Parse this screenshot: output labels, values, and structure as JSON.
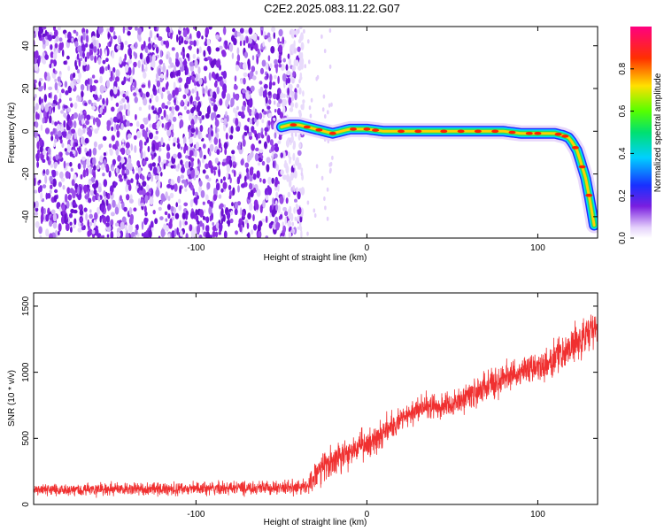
{
  "title": "C2E2.2025.083.11.22.G07",
  "chart_data": [
    {
      "type": "heatmap",
      "xlabel": "Height of straight line (km)",
      "ylabel": "Frequency (Hz)",
      "xlim": [
        -195,
        135
      ],
      "ylim": [
        -50,
        49
      ],
      "x_ticks": [
        -100,
        0,
        100
      ],
      "y_ticks": [
        -40,
        -20,
        0,
        20,
        40
      ],
      "colorbar": {
        "label": "Normalized spectral amplitude",
        "range": [
          0,
          1
        ],
        "ticks": [
          0,
          0.2,
          0.4,
          0.6,
          0.8
        ],
        "colormap": [
          "#ffffff",
          "#c8a8f0",
          "#7a1fe0",
          "#2030ff",
          "#00d8ff",
          "#00e060",
          "#ccff00",
          "#ffcc00",
          "#ff2000",
          "#ff0080"
        ]
      },
      "noise_region_x": [
        -195,
        -45
      ],
      "ridge": {
        "x": [
          -50,
          -45,
          -40,
          -35,
          -30,
          -25,
          -20,
          -15,
          -10,
          -5,
          0,
          10,
          20,
          40,
          60,
          80,
          90,
          100,
          105,
          110,
          115,
          118,
          120,
          123,
          125,
          128,
          130,
          133
        ],
        "freq": [
          2,
          3,
          3,
          2,
          1,
          0,
          -1,
          0,
          1,
          1,
          1,
          0,
          0,
          0,
          0,
          0,
          -1,
          -1,
          -1,
          -1,
          -2,
          -3,
          -5,
          -9,
          -14,
          -22,
          -30,
          -44
        ]
      }
    },
    {
      "type": "line",
      "xlabel": "Height of straight line (km)",
      "ylabel": "SNR (10 * v/v)",
      "xlim": [
        -195,
        135
      ],
      "ylim": [
        0,
        1600
      ],
      "x_ticks": [
        -100,
        0,
        100
      ],
      "y_ticks": [
        0,
        500,
        1000,
        1500
      ],
      "color": "#f03030",
      "envelope": {
        "x": [
          -195,
          -150,
          -100,
          -50,
          -35,
          -30,
          -20,
          -10,
          0,
          10,
          20,
          30,
          40,
          50,
          60,
          70,
          80,
          90,
          100,
          110,
          120,
          130,
          135
        ],
        "mean": [
          110,
          115,
          120,
          125,
          130,
          230,
          330,
          400,
          450,
          560,
          640,
          720,
          750,
          760,
          820,
          890,
          950,
          1000,
          1040,
          1100,
          1200,
          1300,
          1350
        ],
        "spread": [
          60,
          65,
          65,
          65,
          80,
          140,
          160,
          160,
          150,
          140,
          130,
          130,
          130,
          130,
          140,
          140,
          150,
          160,
          160,
          170,
          180,
          190,
          200
        ]
      }
    }
  ]
}
